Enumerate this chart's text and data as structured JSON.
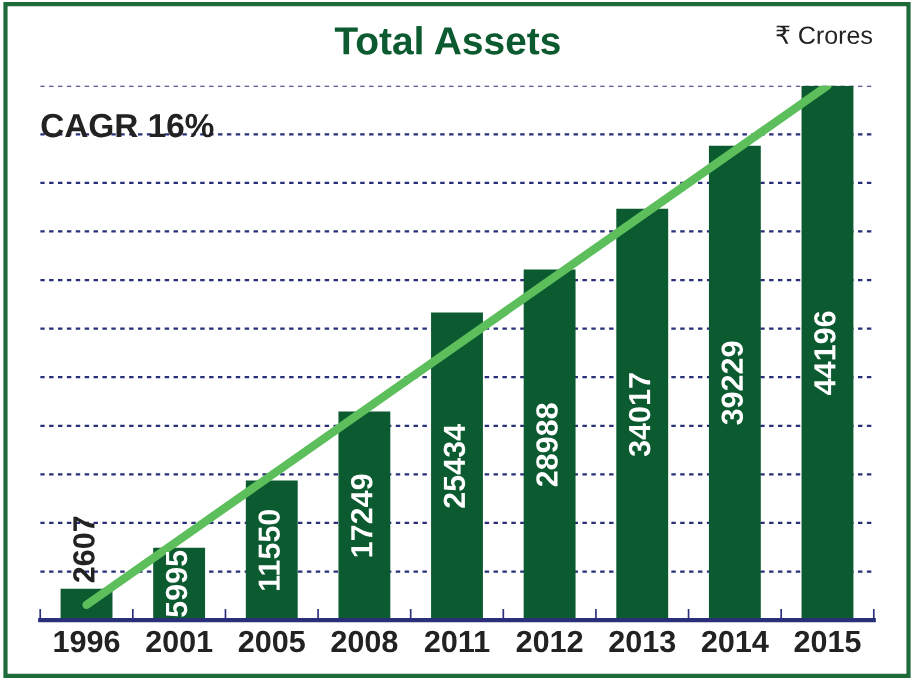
{
  "chart_data": {
    "type": "bar",
    "title": "Total Assets",
    "annotations": [
      "₹ Crores",
      "CAGR 16%"
    ],
    "categories": [
      "1996",
      "2001",
      "2005",
      "2008",
      "2011",
      "2012",
      "2013",
      "2014",
      "2015"
    ],
    "series": [
      {
        "color": "#0b5a30",
        "values": [
          2607,
          5995,
          11550,
          17249,
          25434,
          28988,
          34017,
          39229,
          44196
        ],
        "value_labels": [
          "2607",
          "5995",
          "11550",
          "17249",
          "25434",
          "28988",
          "34017",
          "39229",
          "44196"
        ]
      },
      {
        "type": "line",
        "color": "#5cbf5c",
        "values": [
          1270,
          null,
          null,
          null,
          null,
          null,
          null,
          null,
          44196
        ]
      }
    ],
    "ylim": [
      0,
      44196
    ],
    "yticks": [
      {
        "value": 4018,
        "label": null
      },
      {
        "value": 8036,
        "label": null
      },
      {
        "value": 12053,
        "label": null
      },
      {
        "value": 16071,
        "label": null
      },
      {
        "value": 20089,
        "label": null
      },
      {
        "value": 24107,
        "label": null
      },
      {
        "value": 28125,
        "label": null
      },
      {
        "value": 32143,
        "label": null
      },
      {
        "value": 36160,
        "label": null
      },
      {
        "value": 40178,
        "label": null
      },
      {
        "value": 44196,
        "label": null
      }
    ],
    "grid": "y",
    "tick_labels": "x",
    "line_style": "solid",
    "marker": "none"
  }
}
